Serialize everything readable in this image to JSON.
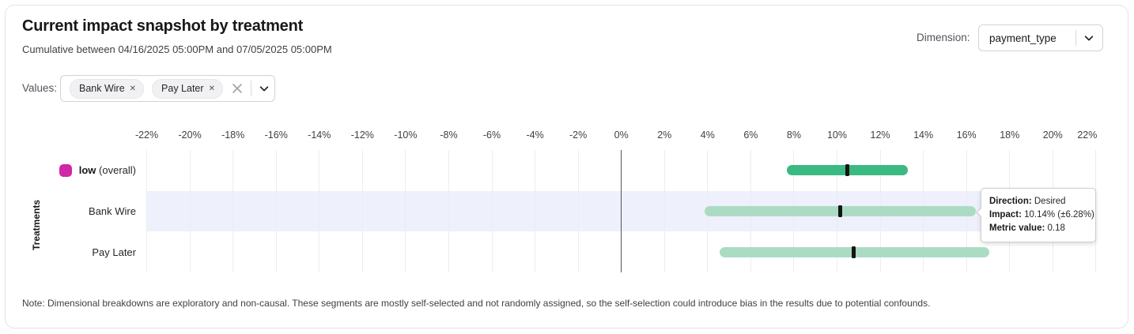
{
  "header": {
    "title": "Current impact snapshot by treatment",
    "subtitle": "Cumulative between 04/16/2025 05:00PM and 07/05/2025 05:00PM",
    "dimension_label": "Dimension:",
    "dimension_value": "payment_type"
  },
  "filters": {
    "values_label": "Values:",
    "chips": [
      "Bank Wire",
      "Pay Later"
    ]
  },
  "chart_data": {
    "type": "interval_bar",
    "orientation": "horizontal",
    "ylabel": "Treatments",
    "xlabel": "",
    "grid": true,
    "xlim_pct": [
      -22,
      22
    ],
    "axis": {
      "tick_values": [
        -22,
        -20,
        -18,
        -16,
        -14,
        -12,
        -10,
        -8,
        -6,
        -4,
        -2,
        0,
        2,
        4,
        6,
        8,
        10,
        12,
        14,
        16,
        18,
        20,
        22
      ],
      "tick_labels": [
        "-22%",
        "-20%",
        "-18%",
        "-16%",
        "-14%",
        "-12%",
        "-10%",
        "-8%",
        "-6%",
        "-4%",
        "-2%",
        "0%",
        "2%",
        "4%",
        "6%",
        "8%",
        "10%",
        "12%",
        "14%",
        "16%",
        "18%",
        "20%",
        "22%"
      ]
    },
    "rows": [
      {
        "label": "low",
        "label_bold": true,
        "label_suffix": "(overall)",
        "impact_pct": 10.47,
        "ci_low_pct": 7.67,
        "ci_high_pct": 13.27,
        "bar_color": "#3bb982",
        "swatch_color": "#cf27a7",
        "highlighted": false
      },
      {
        "label": "Bank Wire",
        "label_bold": false,
        "label_suffix": "",
        "impact_pct": 10.14,
        "ci_low_pct": 3.86,
        "ci_high_pct": 16.42,
        "bar_color": "#abdcc3",
        "highlighted": true
      },
      {
        "label": "Pay Later",
        "label_bold": false,
        "label_suffix": "",
        "impact_pct": 10.77,
        "ci_low_pct": 4.54,
        "ci_high_pct": 17.07,
        "bar_color": "#abdcc3",
        "highlighted": false
      }
    ]
  },
  "tooltip": {
    "direction_label": "Direction:",
    "direction_value": "Desired",
    "impact_label": "Impact:",
    "impact_value": "10.14% (±6.28%)",
    "metric_label": "Metric value:",
    "metric_value": "0.18"
  },
  "note": "Note: Dimensional breakdowns are exploratory and non-causal. These segments are mostly self-selected and not randomly assigned, so the self-selection could introduce bias in the results due to potential confounds."
}
